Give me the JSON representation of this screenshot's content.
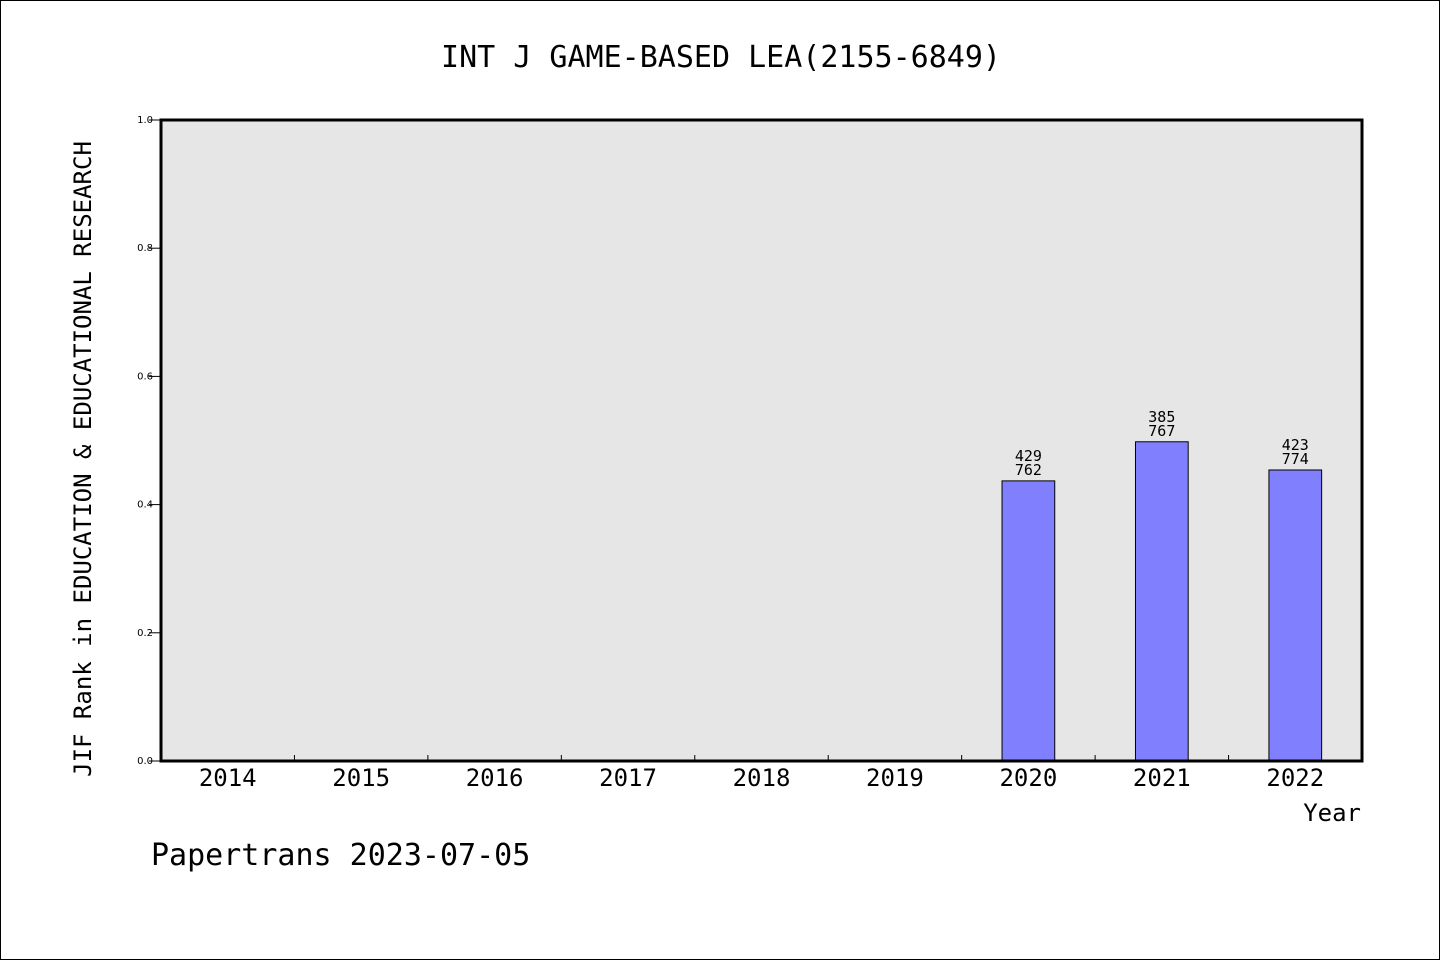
{
  "chart_data": {
    "type": "bar",
    "title": "INT J GAME-BASED LEA(2155-6849)",
    "xlabel": "Year",
    "ylabel": "JIF Rank in EDUCATION & EDUCATIONAL RESEARCH",
    "categories": [
      "2014",
      "2015",
      "2016",
      "2017",
      "2018",
      "2019",
      "2020",
      "2021",
      "2022"
    ],
    "values": [
      null,
      null,
      null,
      null,
      null,
      null,
      0.437,
      0.498,
      0.454
    ],
    "bar_labels": [
      null,
      null,
      null,
      null,
      null,
      null,
      {
        "rank": "429",
        "total": "762"
      },
      {
        "rank": "385",
        "total": "767"
      },
      {
        "rank": "423",
        "total": "774"
      }
    ],
    "ylim": [
      0,
      1
    ],
    "yticks": [
      "0.0",
      "0.2",
      "0.4",
      "0.6",
      "0.8",
      "1.0"
    ],
    "grid": false,
    "legend": "none",
    "colors": {
      "bar": "#8080ff",
      "plot_background": "#e6e6e6",
      "page_background": "#ffffff"
    }
  },
  "footer": {
    "text": "Papertrans 2023-07-05"
  }
}
